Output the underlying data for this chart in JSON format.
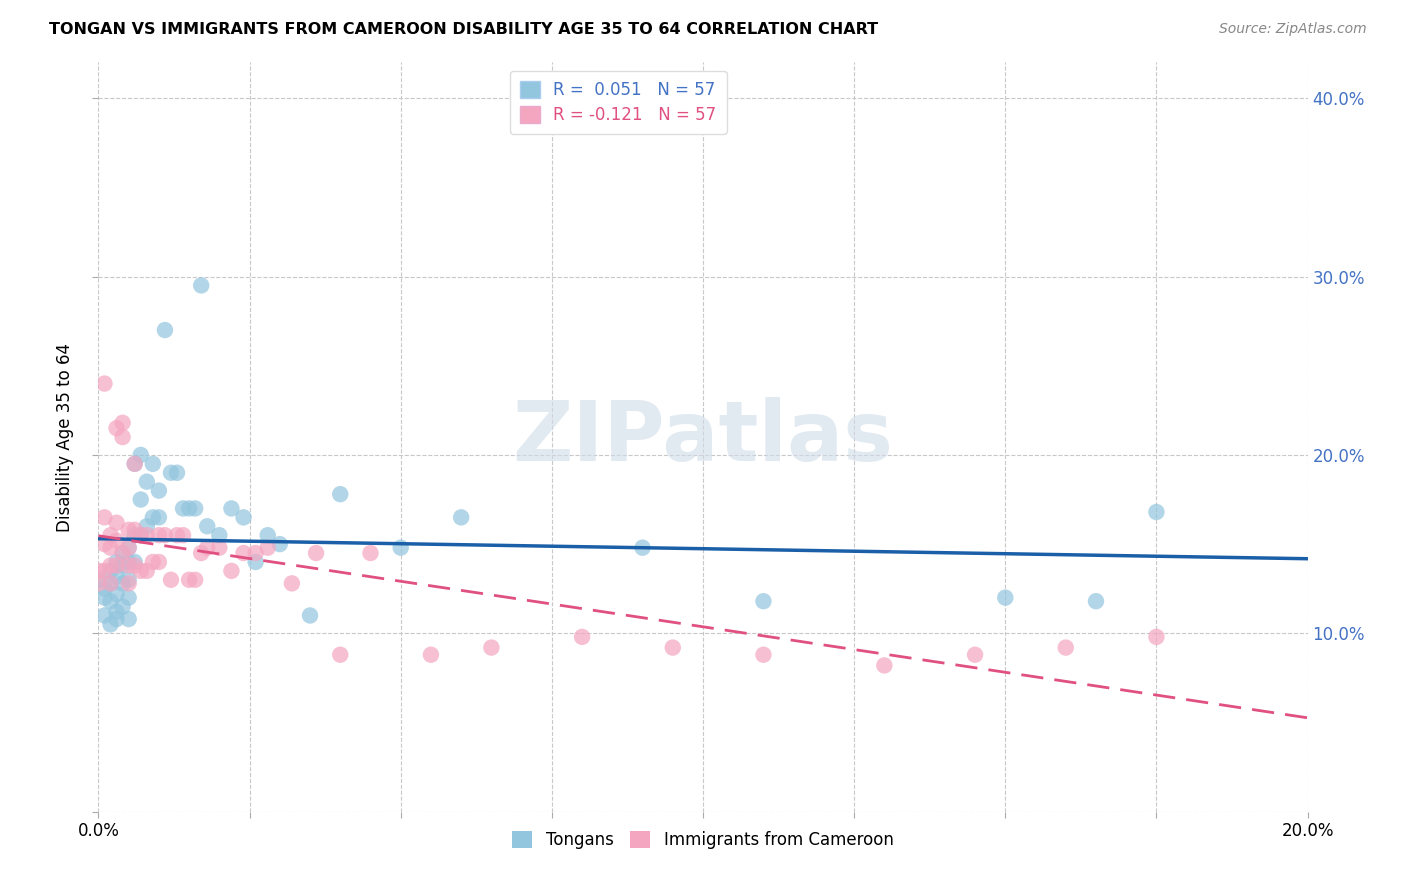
{
  "title": "TONGAN VS IMMIGRANTS FROM CAMEROON DISABILITY AGE 35 TO 64 CORRELATION CHART",
  "source": "Source: ZipAtlas.com",
  "ylabel_label": "Disability Age 35 to 64",
  "xlim": [
    0.0,
    0.2
  ],
  "ylim": [
    0.0,
    0.42
  ],
  "xticks": [
    0.0,
    0.025,
    0.05,
    0.075,
    0.1,
    0.125,
    0.15,
    0.175,
    0.2
  ],
  "xtick_labels_show": [
    0.0,
    0.2
  ],
  "xtick_label_start": "0.0%",
  "xtick_label_end": "20.0%",
  "yticks": [
    0.0,
    0.1,
    0.2,
    0.3,
    0.4
  ],
  "ytick_labels": [
    "",
    "10.0%",
    "20.0%",
    "30.0%",
    "40.0%"
  ],
  "legend_line1": "R =  0.051   N = 57",
  "legend_line2": "R = -0.121   N = 57",
  "legend_labels": [
    "Tongans",
    "Immigrants from Cameroon"
  ],
  "watermark": "ZIPatlas",
  "background_color": "#ffffff",
  "grid_color": "#c8c8c8",
  "blue_color": "#92c5de",
  "pink_color": "#f4a6c0",
  "blue_line_color": "#1a5fa8",
  "pink_line_color": "#e05080",
  "blue_tick_color": "#4472c4",
  "tongan_x": [
    0.0,
    0.001,
    0.001,
    0.001,
    0.002,
    0.002,
    0.002,
    0.002,
    0.003,
    0.003,
    0.003,
    0.003,
    0.003,
    0.004,
    0.004,
    0.004,
    0.004,
    0.005,
    0.005,
    0.005,
    0.005,
    0.005,
    0.006,
    0.006,
    0.006,
    0.007,
    0.007,
    0.007,
    0.008,
    0.008,
    0.009,
    0.009,
    0.01,
    0.01,
    0.011,
    0.012,
    0.013,
    0.014,
    0.015,
    0.016,
    0.017,
    0.018,
    0.02,
    0.022,
    0.024,
    0.026,
    0.028,
    0.03,
    0.035,
    0.04,
    0.05,
    0.06,
    0.09,
    0.11,
    0.15,
    0.165,
    0.175
  ],
  "tongan_y": [
    0.13,
    0.125,
    0.12,
    0.11,
    0.135,
    0.128,
    0.118,
    0.105,
    0.14,
    0.132,
    0.122,
    0.112,
    0.108,
    0.145,
    0.138,
    0.128,
    0.115,
    0.148,
    0.14,
    0.13,
    0.12,
    0.108,
    0.195,
    0.155,
    0.14,
    0.2,
    0.175,
    0.155,
    0.185,
    0.16,
    0.195,
    0.165,
    0.18,
    0.165,
    0.27,
    0.19,
    0.19,
    0.17,
    0.17,
    0.17,
    0.295,
    0.16,
    0.155,
    0.17,
    0.165,
    0.14,
    0.155,
    0.15,
    0.11,
    0.178,
    0.148,
    0.165,
    0.148,
    0.118,
    0.12,
    0.118,
    0.168
  ],
  "cameroon_x": [
    0.0,
    0.0,
    0.001,
    0.001,
    0.001,
    0.001,
    0.002,
    0.002,
    0.002,
    0.002,
    0.003,
    0.003,
    0.003,
    0.003,
    0.004,
    0.004,
    0.004,
    0.005,
    0.005,
    0.005,
    0.005,
    0.006,
    0.006,
    0.006,
    0.007,
    0.007,
    0.008,
    0.008,
    0.009,
    0.01,
    0.01,
    0.011,
    0.012,
    0.013,
    0.014,
    0.015,
    0.016,
    0.017,
    0.018,
    0.02,
    0.022,
    0.024,
    0.026,
    0.028,
    0.032,
    0.036,
    0.04,
    0.045,
    0.055,
    0.065,
    0.08,
    0.095,
    0.11,
    0.13,
    0.145,
    0.16,
    0.175
  ],
  "cameroon_y": [
    0.135,
    0.128,
    0.24,
    0.165,
    0.15,
    0.135,
    0.155,
    0.148,
    0.138,
    0.128,
    0.215,
    0.162,
    0.152,
    0.138,
    0.218,
    0.21,
    0.145,
    0.158,
    0.148,
    0.138,
    0.128,
    0.195,
    0.158,
    0.138,
    0.155,
    0.135,
    0.155,
    0.135,
    0.14,
    0.155,
    0.14,
    0.155,
    0.13,
    0.155,
    0.155,
    0.13,
    0.13,
    0.145,
    0.148,
    0.148,
    0.135,
    0.145,
    0.145,
    0.148,
    0.128,
    0.145,
    0.088,
    0.145,
    0.088,
    0.092,
    0.098,
    0.092,
    0.088,
    0.082,
    0.088,
    0.092,
    0.098
  ]
}
